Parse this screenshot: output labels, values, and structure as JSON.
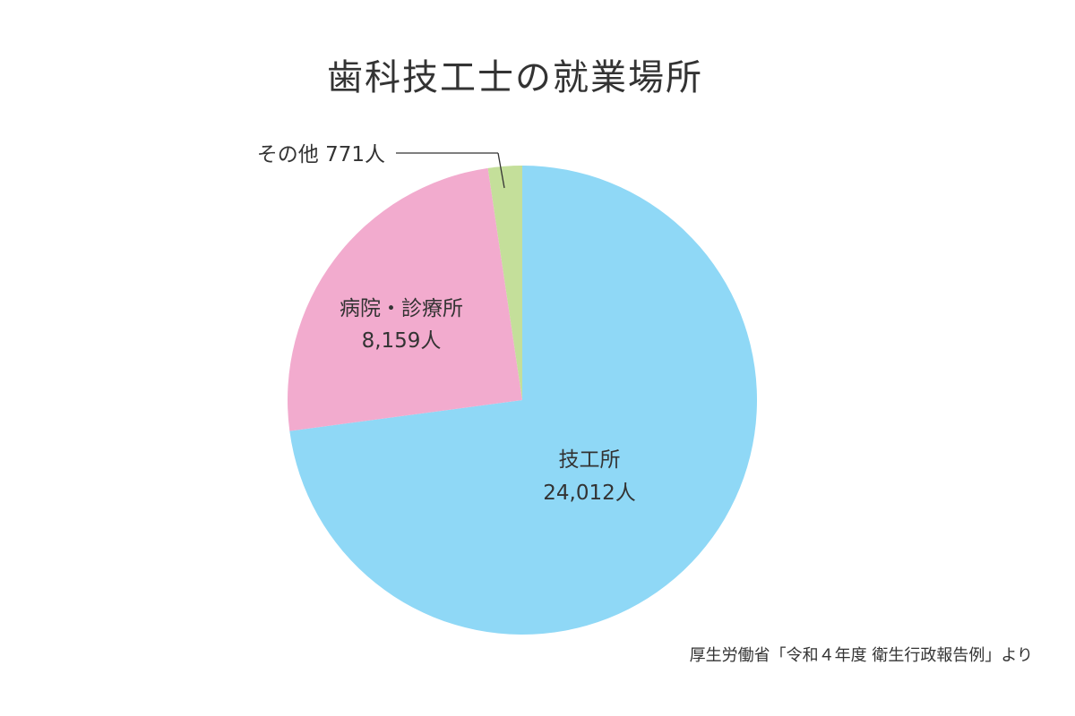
{
  "chart_data": {
    "type": "pie",
    "title": "歯科技工士の就業場所",
    "unit": "人",
    "slices": [
      {
        "name": "技工所",
        "value": 24012,
        "value_label": "24,012人",
        "color": "#8fd8f6"
      },
      {
        "name": "病院・診療所",
        "value": 8159,
        "value_label": "8,159人",
        "color": "#f2abce"
      },
      {
        "name": "その他",
        "value": 771,
        "value_label": "771人",
        "color": "#c4df9a",
        "combined_label": "その他 771人"
      }
    ],
    "source": "厚生労働省「令和４年度 衛生行政報告例」より"
  }
}
